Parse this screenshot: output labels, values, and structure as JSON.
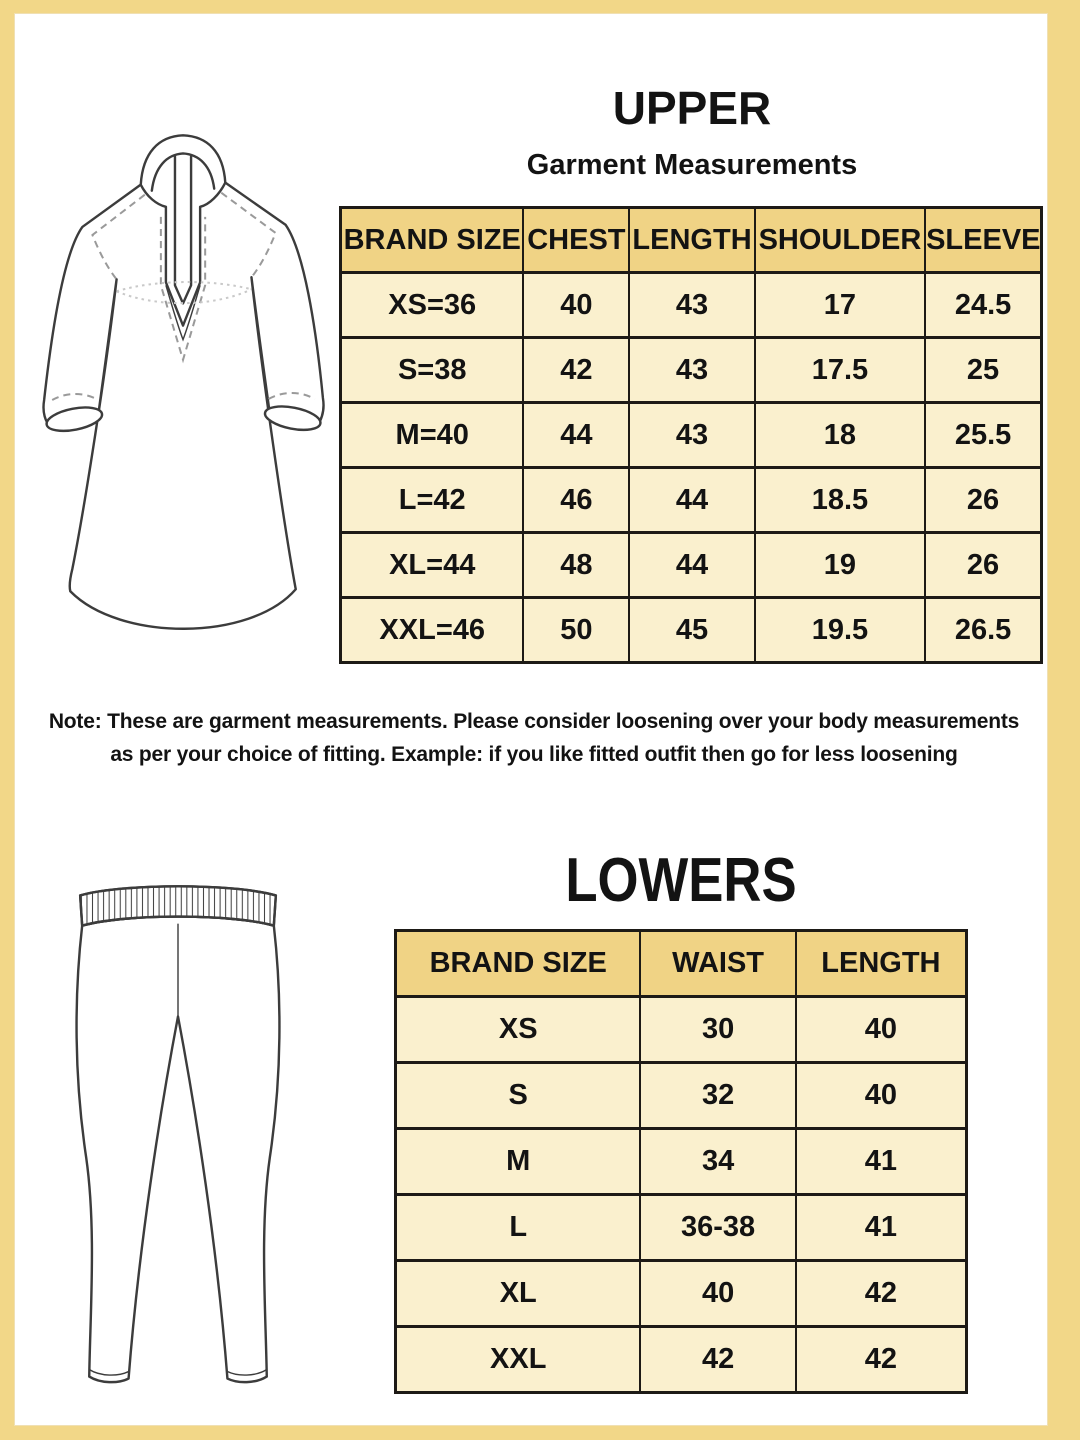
{
  "colors": {
    "frame": "#f2d788",
    "frame_inner_line": "#e3c675",
    "page_bg": "#ffffff",
    "table_header_bg": "#f0d385",
    "table_body_bg": "#faf0ce",
    "table_border": "#1d1a16",
    "text": "#131313",
    "drawing_stroke": "#3c3c3c",
    "drawing_dash": "#9a9a9a",
    "drawing_dot": "#c9c9c9"
  },
  "upper": {
    "title": "UPPER",
    "subtitle": "Garment Measurements",
    "table": {
      "headers": [
        "BRAND SIZE",
        "CHEST",
        "LENGTH",
        "SHOULDER",
        "SLEEVE"
      ],
      "rows": [
        [
          "XS=36",
          "40",
          "43",
          "17",
          "24.5"
        ],
        [
          "S=38",
          "42",
          "43",
          "17.5",
          "25"
        ],
        [
          "M=40",
          "44",
          "43",
          "18",
          "25.5"
        ],
        [
          "L=42",
          "46",
          "44",
          "18.5",
          "26"
        ],
        [
          "XL=44",
          "48",
          "44",
          "19",
          "26"
        ],
        [
          "XXL=46",
          "50",
          "45",
          "19.5",
          "26.5"
        ]
      ]
    }
  },
  "note": {
    "line1": "Note: These are garment measurements. Please consider loosening over your body measurements",
    "line2": "as per your choice of fitting. Example: if you like fitted outfit then go for less loosening"
  },
  "lowers": {
    "title": "LOWERS",
    "table": {
      "headers": [
        "BRAND SIZE",
        "WAIST",
        "LENGTH"
      ],
      "rows": [
        [
          "XS",
          "30",
          "40"
        ],
        [
          "S",
          "32",
          "40"
        ],
        [
          "M",
          "34",
          "41"
        ],
        [
          "L",
          "36-38",
          "41"
        ],
        [
          "XL",
          "40",
          "42"
        ],
        [
          "XXL",
          "42",
          "42"
        ]
      ]
    }
  }
}
